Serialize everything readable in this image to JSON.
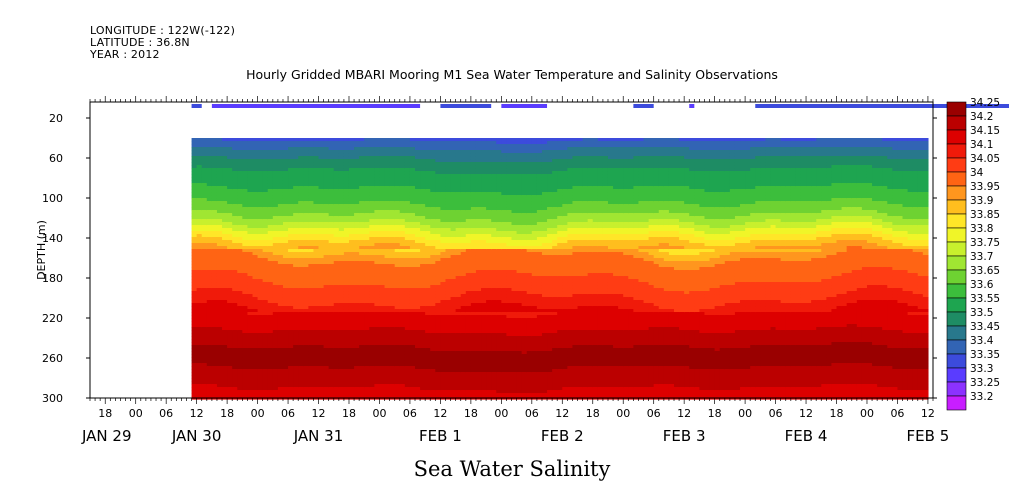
{
  "header": {
    "longitude": "LONGITUDE : 122W(-122)",
    "latitude": "LATITUDE : 36.8N",
    "year": "YEAR : 2012"
  },
  "chart_data": {
    "type": "heatmap",
    "title": "Hourly Gridded MBARI Mooring M1 Sea Water Temperature and Salinity Observations",
    "xlabel": "",
    "ylabel": "DEPTH (m)",
    "caption": "Sea Water Salinity",
    "y_ticks": [
      20,
      60,
      100,
      140,
      180,
      220,
      260,
      300
    ],
    "ylim": [
      300,
      4
    ],
    "x_hour_ticks": [
      "18",
      "00",
      "06",
      "12",
      "18",
      "00",
      "06",
      "12",
      "18",
      "00",
      "06",
      "12",
      "18",
      "00",
      "06",
      "12",
      "18",
      "00",
      "06",
      "12",
      "18",
      "00",
      "06",
      "12",
      "18",
      "00",
      "06",
      "12"
    ],
    "x_day_labels": [
      "JAN 29",
      "JAN 30",
      "JAN 31",
      "FEB  1",
      "FEB  2",
      "FEB  3",
      "FEB  4",
      "FEB  5"
    ],
    "x_range": [
      "2012-01-29T15:00",
      "2012-02-05T13:00"
    ],
    "colorbar": {
      "labels": [
        "34.25",
        "34.2",
        "34.15",
        "34.1",
        "34.05",
        "34",
        "33.95",
        "33.9",
        "33.85",
        "33.8",
        "33.75",
        "33.7",
        "33.65",
        "33.6",
        "33.55",
        "33.5",
        "33.45",
        "33.4",
        "33.35",
        "33.3",
        "33.25",
        "33.2"
      ],
      "colors": [
        "#9a0000",
        "#bb0000",
        "#dd0000",
        "#f01a0a",
        "#ff3c14",
        "#ff6414",
        "#ff961e",
        "#ffbe1e",
        "#ffe628",
        "#f0f528",
        "#c8f02d",
        "#a0e632",
        "#6ed232",
        "#3cbe3c",
        "#1ea550",
        "#1e8c64",
        "#28788c",
        "#3264b4",
        "#3c4bdc",
        "#5a3cff",
        "#8c32ff",
        "#c81eff"
      ]
    },
    "surface_sensor_depth": 8,
    "surface_band_values": [
      33.33,
      33.3
    ],
    "profile_depths": [
      40,
      55,
      70,
      85,
      100,
      115,
      125,
      135,
      145,
      160,
      180,
      200,
      212,
      225,
      240,
      255,
      275,
      295
    ],
    "profile_salinity": [
      33.36,
      33.45,
      33.52,
      33.56,
      33.6,
      33.66,
      33.72,
      33.8,
      33.88,
      33.98,
      34.02,
      34.07,
      34.12,
      34.15,
      34.2,
      34.24,
      34.22,
      34.16
    ]
  }
}
